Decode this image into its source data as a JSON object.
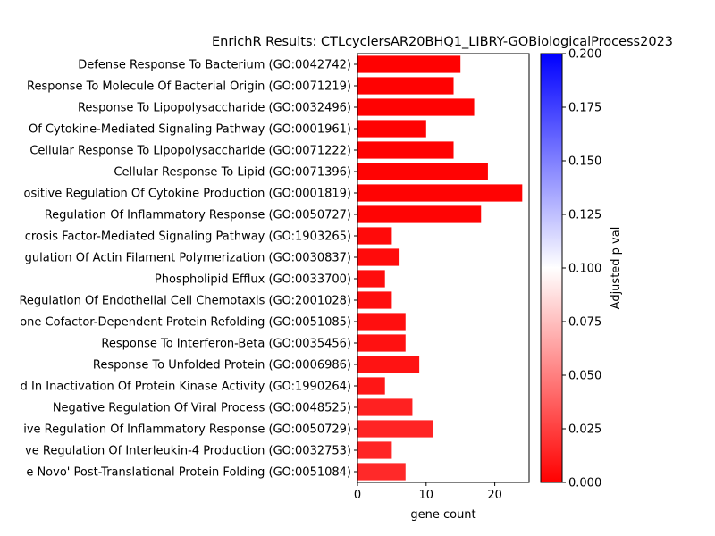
{
  "chart_data": {
    "type": "bar",
    "orientation": "horizontal",
    "title": "EnrichR Results: CTLcyclersAR20BHQ1_LIBRY-GOBiologicalProcess2023",
    "xlabel": "gene count",
    "ylabel": "",
    "xlim": [
      0,
      25
    ],
    "xticks": [
      "0",
      "10",
      "20"
    ],
    "xtick_values": [
      0,
      10,
      20
    ],
    "categories": [
      "Defense Response To Bacterium (GO:0042742)",
      "Response To Molecule Of Bacterial Origin (GO:0071219)",
      "Response To Lipopolysaccharide (GO:0032496)",
      "Of Cytokine-Mediated Signaling Pathway (GO:0001961)",
      "Cellular Response To Lipopolysaccharide (GO:0071222)",
      "Cellular Response To Lipid (GO:0071396)",
      "ositive Regulation Of Cytokine Production (GO:0001819)",
      "Regulation Of Inflammatory Response (GO:0050727)",
      "crosis Factor-Mediated Signaling Pathway (GO:1903265)",
      "gulation Of Actin Filament Polymerization (GO:0030837)",
      "Phospholipid Efflux (GO:0033700)",
      "Regulation Of Endothelial Cell Chemotaxis (GO:2001028)",
      "one Cofactor-Dependent Protein Refolding (GO:0051085)",
      "Response To Interferon-Beta (GO:0035456)",
      "Response To Unfolded Protein (GO:0006986)",
      "d In Inactivation Of Protein Kinase Activity (GO:1990264)",
      "Negative Regulation Of Viral Process (GO:0048525)",
      "ive Regulation Of Inflammatory Response (GO:0050729)",
      "ve Regulation Of Interleukin-4 Production (GO:0032753)",
      "e Novo' Post-Translational Protein Folding (GO:0051084)"
    ],
    "values": [
      15,
      14,
      17,
      10,
      14,
      19,
      24,
      18,
      5,
      6,
      4,
      5,
      7,
      7,
      9,
      4,
      8,
      11,
      5,
      7
    ],
    "adjusted_p": [
      0.0005,
      0.0006,
      0.0007,
      0.0008,
      0.0009,
      0.001,
      0.0012,
      0.0014,
      0.004,
      0.0045,
      0.005,
      0.0055,
      0.006,
      0.0065,
      0.0075,
      0.0085,
      0.013,
      0.014,
      0.015,
      0.016
    ],
    "colorbar": {
      "label": "Adjusted p val",
      "range": [
        0,
        0.2
      ],
      "ticks": [
        "0.000",
        "0.025",
        "0.050",
        "0.075",
        "0.100",
        "0.125",
        "0.150",
        "0.175",
        "0.200"
      ],
      "tick_values": [
        0,
        0.025,
        0.05,
        0.075,
        0.1,
        0.125,
        0.15,
        0.175,
        0.2
      ],
      "colormap": [
        "#ff0000",
        "#ffffff",
        "#0000ff"
      ]
    },
    "grid": false,
    "legend": "none"
  }
}
